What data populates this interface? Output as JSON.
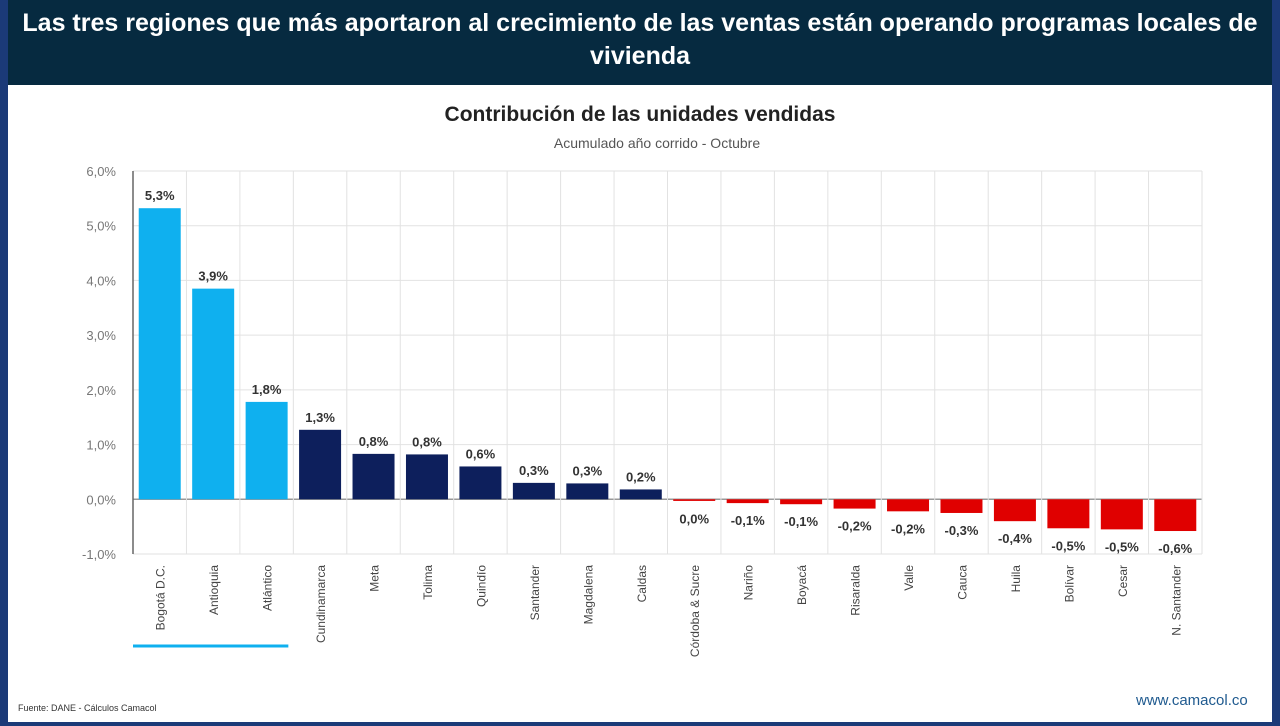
{
  "header": {
    "title": "Las tres regiones que más aportaron al crecimiento de las ventas están operando programas locales de vivienda"
  },
  "footer": {
    "source": "Fuente: DANE - Cálculos Camacol",
    "website": "www.camacol.co"
  },
  "colors": {
    "highlight": "#0fb0ef",
    "base": "#0d1f5c",
    "negative": "#e00000",
    "header_bg": "#062a40"
  },
  "chart_data": {
    "type": "bar",
    "title": "Contribución de las unidades vendidas",
    "subtitle": "Acumulado año corrido - Octubre",
    "xlabel": "",
    "ylabel": "",
    "ylim": [
      -0.01,
      0.06
    ],
    "yticks": [
      "6,0%",
      "5,0%",
      "4,0%",
      "3,0%",
      "2,0%",
      "1,0%",
      "0,0%",
      "-1,0%"
    ],
    "grid": true,
    "categories": [
      "Bogotá D.C.",
      "Antioquia",
      "Atlántico",
      "Cundinamarca",
      "Meta",
      "Tolima",
      "Quindío",
      "Santander",
      "Magdalena",
      "Caldas",
      "Córdoba & Sucre",
      "Nariño",
      "Boyacá",
      "Risaralda",
      "Valle",
      "Cauca",
      "Huila",
      "Bolívar",
      "Cesar",
      "N. Santander"
    ],
    "values": [
      5.32,
      3.85,
      1.78,
      1.27,
      0.83,
      0.82,
      0.6,
      0.3,
      0.29,
      0.18,
      -0.03,
      -0.07,
      -0.09,
      -0.17,
      -0.22,
      -0.25,
      -0.4,
      -0.53,
      -0.55,
      -0.58
    ],
    "data_labels": [
      "5,3%",
      "3,9%",
      "1,8%",
      "1,3%",
      "0,8%",
      "0,8%",
      "0,6%",
      "0,3%",
      "0,3%",
      "0,2%",
      "0,0%",
      "-0,1%",
      "-0,1%",
      "-0,2%",
      "-0,2%",
      "-0,3%",
      "-0,4%",
      "-0,5%",
      "-0,5%",
      "-0,6%"
    ],
    "highlighted": [
      "Bogotá D.C.",
      "Antioquia",
      "Atlántico"
    ]
  }
}
